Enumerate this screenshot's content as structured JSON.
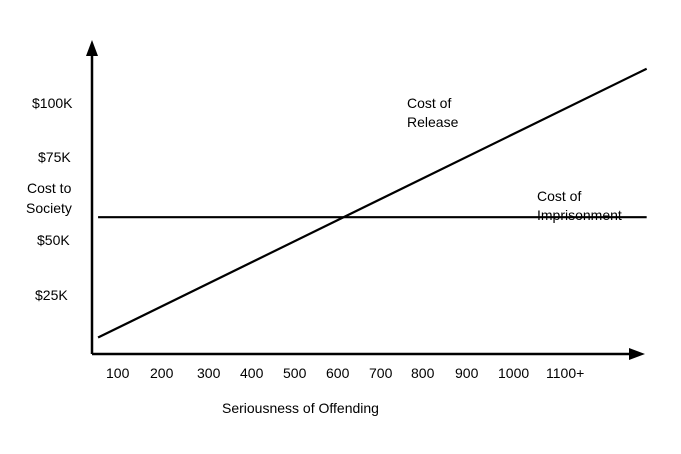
{
  "chart_data": {
    "type": "line",
    "xlabel": "Seriousness of Offending",
    "ylabel": "Cost to Society",
    "ylabel_lines": [
      "Cost to",
      "Society"
    ],
    "x_ticks": [
      "100",
      "200",
      "300",
      "400",
      "500",
      "600",
      "700",
      "800",
      "900",
      "1000",
      "1100+"
    ],
    "y_ticks": [
      "$25K",
      "$50K",
      "$75K",
      "$100K"
    ],
    "y_tick_values": [
      25,
      50,
      75,
      100
    ],
    "series": [
      {
        "name": "Cost of Release",
        "label_lines": [
          "Cost of",
          "Release"
        ],
        "points": [
          {
            "x": 50,
            "y": 8
          },
          {
            "x": 1300,
            "y": 113
          }
        ]
      },
      {
        "name": "Cost of Imprisonment",
        "label_lines": [
          "Cost of",
          "Imprisonment"
        ],
        "points": [
          {
            "x": 50,
            "y": 55
          },
          {
            "x": 1300,
            "y": 55
          }
        ]
      }
    ],
    "grid": false,
    "legend": "none"
  },
  "colors": {
    "line": "#000000",
    "axis": "#000000",
    "text": "#000000"
  }
}
